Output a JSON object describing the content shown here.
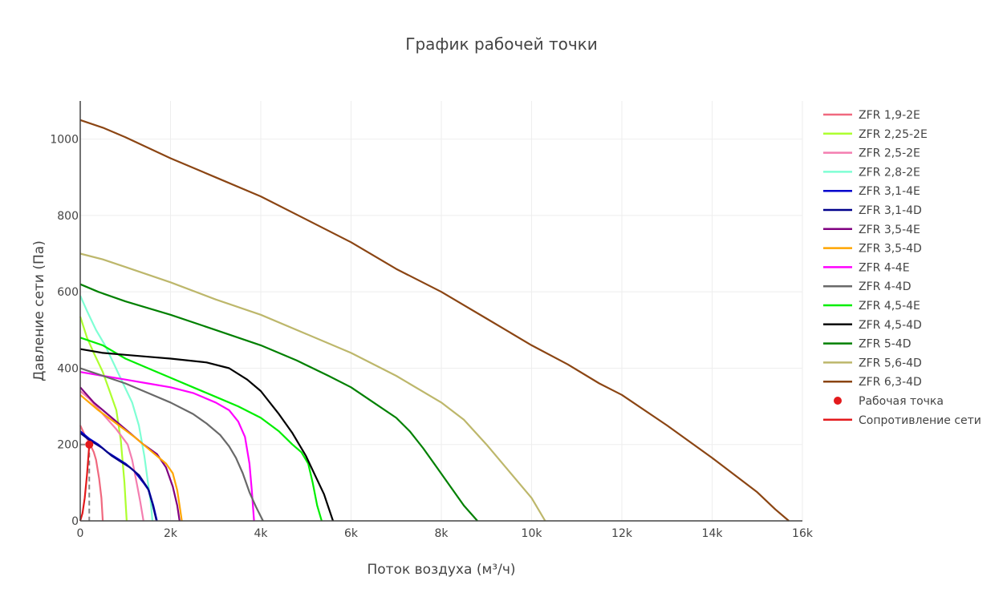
{
  "chart_data": {
    "type": "line",
    "title": "График рабочей точки",
    "xlabel": "Поток воздуха (м³/ч)",
    "ylabel": "Давление сети (Па)",
    "xlim": [
      0,
      16000
    ],
    "ylim": [
      0,
      1100
    ],
    "x_ticks": [
      {
        "value": 0,
        "label": "0"
      },
      {
        "value": 2000,
        "label": "2k"
      },
      {
        "value": 4000,
        "label": "4k"
      },
      {
        "value": 6000,
        "label": "6k"
      },
      {
        "value": 8000,
        "label": "8k"
      },
      {
        "value": 10000,
        "label": "10k"
      },
      {
        "value": 12000,
        "label": "12k"
      },
      {
        "value": 14000,
        "label": "14k"
      },
      {
        "value": 16000,
        "label": "16k"
      }
    ],
    "y_ticks": [
      {
        "value": 0,
        "label": "0"
      },
      {
        "value": 200,
        "label": "200"
      },
      {
        "value": 400,
        "label": "400"
      },
      {
        "value": 600,
        "label": "600"
      },
      {
        "value": 800,
        "label": "800"
      },
      {
        "value": 1000,
        "label": "1000"
      }
    ],
    "grid": true,
    "legend_position": "right",
    "series": [
      {
        "name": "ZFR 1,9-2E",
        "color": "#f0697f",
        "points": [
          [
            0,
            250
          ],
          [
            100,
            225
          ],
          [
            200,
            205
          ],
          [
            300,
            180
          ],
          [
            350,
            160
          ],
          [
            420,
            110
          ],
          [
            470,
            60
          ],
          [
            500,
            0
          ]
        ]
      },
      {
        "name": "ZFR 2,25-2E",
        "color": "#adff2f",
        "points": [
          [
            0,
            535
          ],
          [
            150,
            480
          ],
          [
            300,
            440
          ],
          [
            500,
            390
          ],
          [
            650,
            340
          ],
          [
            800,
            290
          ],
          [
            900,
            210
          ],
          [
            980,
            100
          ],
          [
            1030,
            0
          ]
        ]
      },
      {
        "name": "ZFR 2,5-2E",
        "color": "#f47eb0",
        "points": [
          [
            0,
            340
          ],
          [
            200,
            320
          ],
          [
            500,
            280
          ],
          [
            800,
            240
          ],
          [
            1050,
            200
          ],
          [
            1150,
            160
          ],
          [
            1250,
            100
          ],
          [
            1330,
            50
          ],
          [
            1400,
            0
          ]
        ]
      },
      {
        "name": "ZFR 2,8-2E",
        "color": "#7fffd4",
        "points": [
          [
            0,
            590
          ],
          [
            150,
            550
          ],
          [
            350,
            500
          ],
          [
            550,
            460
          ],
          [
            750,
            410
          ],
          [
            950,
            360
          ],
          [
            1150,
            310
          ],
          [
            1300,
            250
          ],
          [
            1420,
            170
          ],
          [
            1500,
            100
          ],
          [
            1560,
            50
          ],
          [
            1600,
            0
          ]
        ]
      },
      {
        "name": "ZFR 3,1-4E",
        "color": "#0000cd",
        "points": [
          [
            0,
            235
          ],
          [
            200,
            215
          ],
          [
            400,
            200
          ],
          [
            600,
            180
          ],
          [
            800,
            165
          ],
          [
            1000,
            150
          ],
          [
            1200,
            130
          ],
          [
            1400,
            100
          ],
          [
            1520,
            80
          ],
          [
            1620,
            40
          ],
          [
            1700,
            0
          ]
        ]
      },
      {
        "name": "ZFR 3,1-4D",
        "color": "#00008b",
        "points": [
          [
            0,
            230
          ],
          [
            200,
            212
          ],
          [
            500,
            190
          ],
          [
            700,
            170
          ],
          [
            900,
            155
          ],
          [
            1100,
            140
          ],
          [
            1300,
            120
          ],
          [
            1500,
            85
          ],
          [
            1600,
            45
          ],
          [
            1690,
            0
          ]
        ]
      },
      {
        "name": "ZFR 3,5-4E",
        "color": "#800080",
        "points": [
          [
            0,
            350
          ],
          [
            300,
            310
          ],
          [
            700,
            270
          ],
          [
            1100,
            230
          ],
          [
            1400,
            200
          ],
          [
            1700,
            175
          ],
          [
            1900,
            140
          ],
          [
            2050,
            90
          ],
          [
            2150,
            40
          ],
          [
            2200,
            0
          ]
        ]
      },
      {
        "name": "ZFR 3,5-4D",
        "color": "#ffa500",
        "points": [
          [
            0,
            330
          ],
          [
            400,
            290
          ],
          [
            800,
            255
          ],
          [
            1200,
            220
          ],
          [
            1600,
            180
          ],
          [
            1900,
            150
          ],
          [
            2050,
            125
          ],
          [
            2150,
            80
          ],
          [
            2200,
            40
          ],
          [
            2250,
            0
          ]
        ]
      },
      {
        "name": "ZFR 4-4E",
        "color": "#ff00ff",
        "points": [
          [
            0,
            390
          ],
          [
            500,
            380
          ],
          [
            1000,
            370
          ],
          [
            1500,
            360
          ],
          [
            2000,
            350
          ],
          [
            2500,
            335
          ],
          [
            3000,
            310
          ],
          [
            3300,
            290
          ],
          [
            3500,
            260
          ],
          [
            3650,
            220
          ],
          [
            3750,
            150
          ],
          [
            3800,
            80
          ],
          [
            3850,
            0
          ]
        ]
      },
      {
        "name": "ZFR 4-4D",
        "color": "#696969",
        "points": [
          [
            0,
            400
          ],
          [
            500,
            380
          ],
          [
            1000,
            360
          ],
          [
            1500,
            335
          ],
          [
            2000,
            310
          ],
          [
            2500,
            280
          ],
          [
            2800,
            255
          ],
          [
            3100,
            225
          ],
          [
            3300,
            195
          ],
          [
            3450,
            165
          ],
          [
            3600,
            125
          ],
          [
            3750,
            75
          ],
          [
            3900,
            35
          ],
          [
            4050,
            0
          ]
        ]
      },
      {
        "name": "ZFR 4,5-4E",
        "color": "#00ee00",
        "points": [
          [
            0,
            480
          ],
          [
            500,
            460
          ],
          [
            1000,
            425
          ],
          [
            1500,
            400
          ],
          [
            2000,
            375
          ],
          [
            2500,
            350
          ],
          [
            3000,
            325
          ],
          [
            3500,
            300
          ],
          [
            4000,
            270
          ],
          [
            4400,
            235
          ],
          [
            4700,
            200
          ],
          [
            4900,
            180
          ],
          [
            5050,
            150
          ],
          [
            5150,
            100
          ],
          [
            5250,
            40
          ],
          [
            5350,
            0
          ]
        ]
      },
      {
        "name": "ZFR 4,5-4D",
        "color": "#000000",
        "points": [
          [
            0,
            450
          ],
          [
            500,
            440
          ],
          [
            1000,
            435
          ],
          [
            1500,
            430
          ],
          [
            2000,
            425
          ],
          [
            2800,
            415
          ],
          [
            3300,
            400
          ],
          [
            3700,
            370
          ],
          [
            4000,
            340
          ],
          [
            4400,
            280
          ],
          [
            4700,
            230
          ],
          [
            5000,
            170
          ],
          [
            5200,
            120
          ],
          [
            5400,
            70
          ],
          [
            5600,
            0
          ]
        ]
      },
      {
        "name": "ZFR 5-4D",
        "color": "#008000",
        "points": [
          [
            0,
            620
          ],
          [
            400,
            600
          ],
          [
            1000,
            575
          ],
          [
            2000,
            540
          ],
          [
            3000,
            500
          ],
          [
            4000,
            460
          ],
          [
            4800,
            420
          ],
          [
            5500,
            380
          ],
          [
            6000,
            350
          ],
          [
            6500,
            310
          ],
          [
            7000,
            270
          ],
          [
            7300,
            235
          ],
          [
            7600,
            190
          ],
          [
            7900,
            140
          ],
          [
            8200,
            90
          ],
          [
            8500,
            40
          ],
          [
            8800,
            0
          ]
        ]
      },
      {
        "name": "ZFR 5,6-4D",
        "color": "#bdb76b",
        "points": [
          [
            0,
            700
          ],
          [
            500,
            685
          ],
          [
            1000,
            665
          ],
          [
            2000,
            625
          ],
          [
            3000,
            580
          ],
          [
            4000,
            540
          ],
          [
            5000,
            490
          ],
          [
            6000,
            440
          ],
          [
            7000,
            380
          ],
          [
            8000,
            310
          ],
          [
            8500,
            265
          ],
          [
            9000,
            200
          ],
          [
            9500,
            130
          ],
          [
            10000,
            60
          ],
          [
            10300,
            0
          ]
        ]
      },
      {
        "name": "ZFR 6,3-4D",
        "color": "#8b4513",
        "points": [
          [
            0,
            1050
          ],
          [
            500,
            1030
          ],
          [
            1000,
            1005
          ],
          [
            2000,
            950
          ],
          [
            3000,
            900
          ],
          [
            4000,
            850
          ],
          [
            5000,
            790
          ],
          [
            6000,
            730
          ],
          [
            7000,
            660
          ],
          [
            8000,
            600
          ],
          [
            9000,
            530
          ],
          [
            10000,
            460
          ],
          [
            10800,
            410
          ],
          [
            11500,
            360
          ],
          [
            12000,
            330
          ],
          [
            13000,
            250
          ],
          [
            14000,
            165
          ],
          [
            15000,
            75
          ],
          [
            15400,
            30
          ],
          [
            15700,
            0
          ]
        ]
      },
      {
        "name": "Рабочая точка",
        "color": "#e31a1c",
        "mode": "markers",
        "points": [
          [
            200,
            200
          ]
        ]
      },
      {
        "name": "Сопротивление сети",
        "color": "#e31a1c",
        "points": [
          [
            0,
            0
          ],
          [
            50,
            20
          ],
          [
            100,
            60
          ],
          [
            150,
            120
          ],
          [
            200,
            200
          ]
        ]
      }
    ],
    "guide_lines": {
      "color": "#888888",
      "x": 200,
      "y": 200
    }
  }
}
